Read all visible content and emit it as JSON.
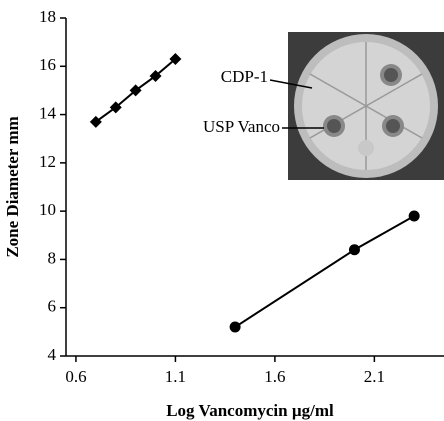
{
  "chart_data": {
    "type": "scatter",
    "xlabel": "Log Vancomycin µg/ml",
    "ylabel": "Zone Diameter mm",
    "xlim": [
      0.55,
      2.45
    ],
    "ylim": [
      4,
      18
    ],
    "xticks": [
      0.6,
      1.1,
      1.6,
      2.1
    ],
    "yticks": [
      4,
      6,
      8,
      10,
      12,
      14,
      16,
      18
    ],
    "series": [
      {
        "name": "CDP-1",
        "color": "#000000",
        "marker": "diamond",
        "x": [
          0.7,
          0.8,
          0.9,
          1.0,
          1.1
        ],
        "values": [
          13.7,
          14.3,
          15.0,
          15.6,
          16.3
        ]
      },
      {
        "name": "USP Vanco",
        "color": "#000000",
        "marker": "circle",
        "x": [
          1.4,
          2.0,
          2.3
        ],
        "values": [
          5.2,
          8.4,
          9.8
        ]
      }
    ]
  }
}
